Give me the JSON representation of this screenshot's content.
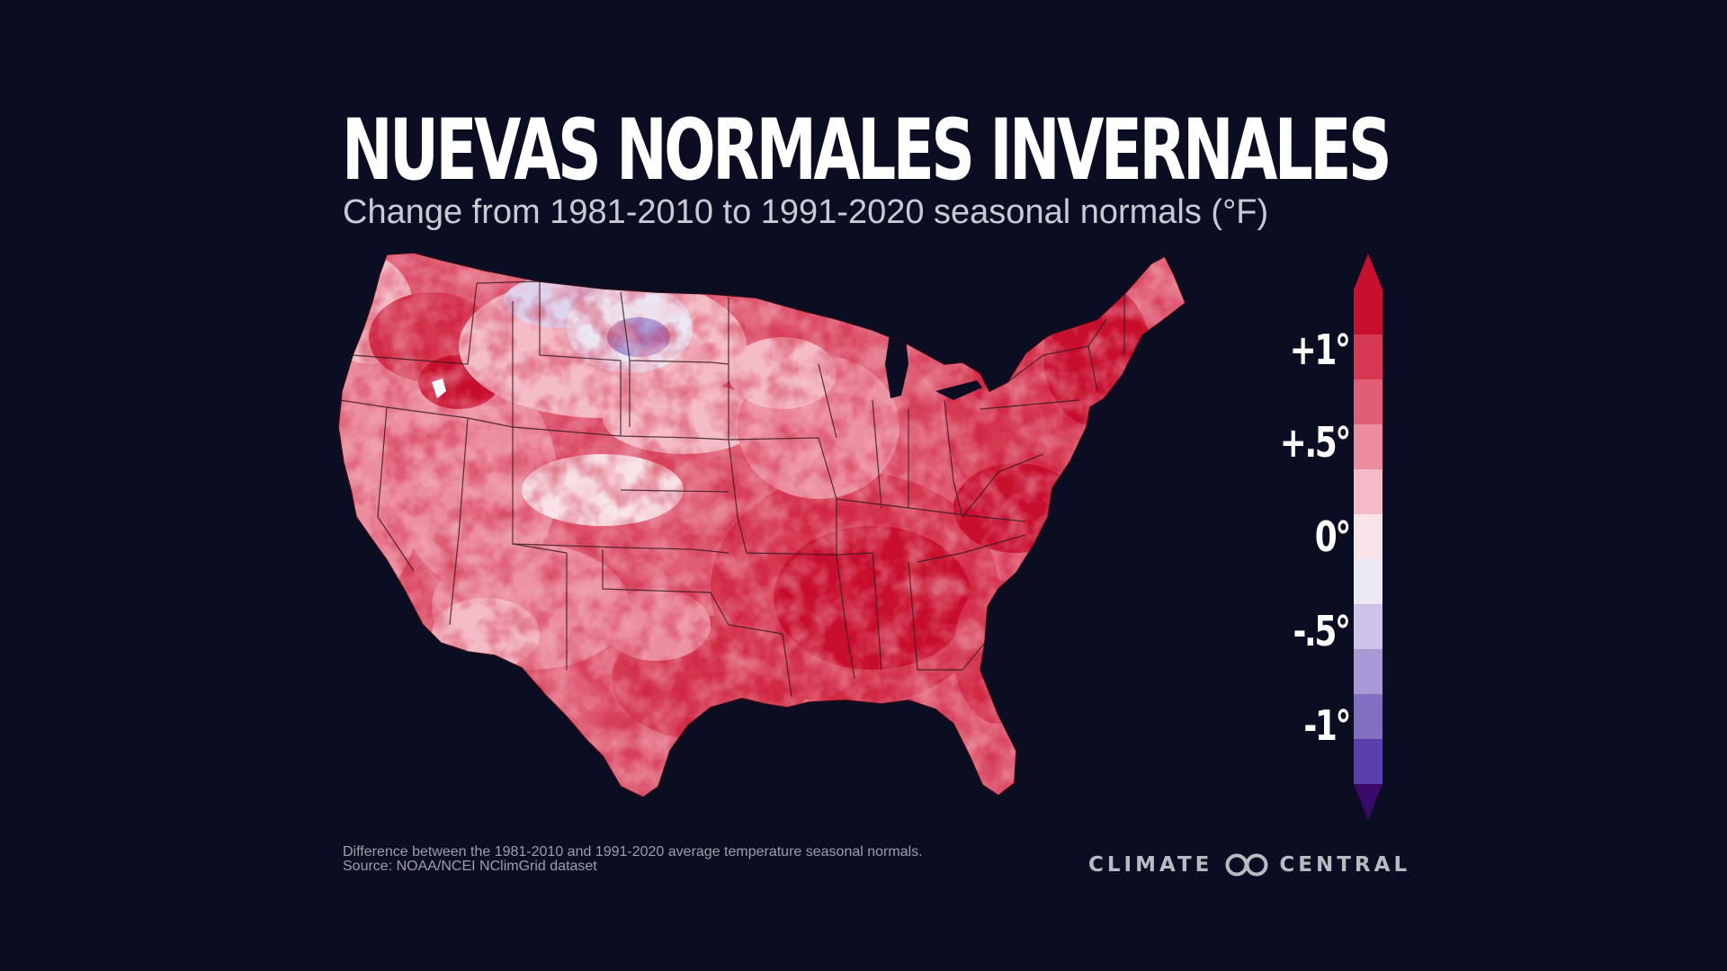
{
  "title": "NUEVAS NORMALES INVERNALES",
  "subtitle": "Change from 1981-2010 to 1991-2020 seasonal normals (°F)",
  "legend": {
    "labels": [
      "+1°",
      "+.5°",
      "0°",
      "-.5°",
      "-1°"
    ],
    "bins": [
      {
        "color": "#c8102e"
      },
      {
        "color": "#d63a52"
      },
      {
        "color": "#e05f76"
      },
      {
        "color": "#ec8d9e"
      },
      {
        "color": "#f4bcc6"
      },
      {
        "color": "#f8e4e8"
      },
      {
        "color": "#ece8f5"
      },
      {
        "color": "#cdc3e8"
      },
      {
        "color": "#a898d6"
      },
      {
        "color": "#8170c2"
      },
      {
        "color": "#5a3fae"
      }
    ],
    "over_color": "#c8102e",
    "under_color": "#3a0a6b"
  },
  "footnote": {
    "line1": "Difference between the 1981-2010 and 1991-2020 average temperature seasonal normals.",
    "line2": "Source: NOAA/NCEI NClimGrid dataset"
  },
  "logo": {
    "left": "CLIMATE",
    "right": "CENTRAL"
  },
  "map_colors": {
    "deep_red": "#c8102e",
    "red": "#d63a52",
    "mid_red": "#e05f76",
    "pink": "#ec8d9e",
    "light_pink": "#f4bcc6",
    "near_zero": "#f8e4e8",
    "light_purple": "#ddd5f0",
    "purple": "#a898d6",
    "border": "#3a1a22"
  }
}
